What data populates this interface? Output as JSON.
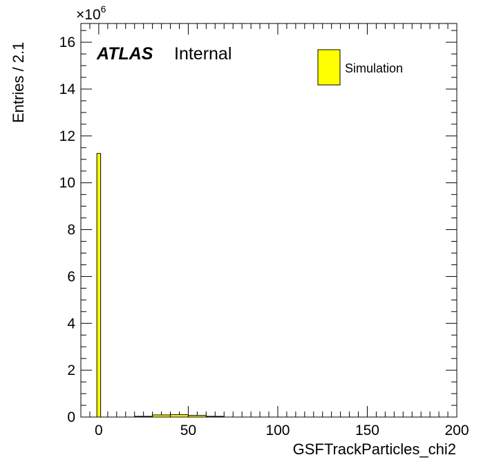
{
  "chart_data": {
    "type": "bar",
    "xlabel": "GSFTrackParticles_chi2",
    "ylabel": "Entries / 2.1",
    "y_scale_label": "×10",
    "y_scale_exponent": "6",
    "y_multiplier": 1000000,
    "xlim": [
      -10,
      200
    ],
    "ylim": [
      0,
      16.8
    ],
    "xticks": [
      0,
      50,
      100,
      150,
      200
    ],
    "yticks": [
      0,
      2,
      4,
      6,
      8,
      10,
      12,
      14,
      16
    ],
    "bin_width": 2.1,
    "bins": [
      {
        "x0": -1.05,
        "x1": 1.05,
        "value": 11.25
      },
      {
        "x0": 20.0,
        "x1": 30.0,
        "value": 0.03
      },
      {
        "x0": 30.0,
        "x1": 40.0,
        "value": 0.09
      },
      {
        "x0": 40.0,
        "x1": 50.0,
        "value": 0.1
      },
      {
        "x0": 50.0,
        "x1": 60.0,
        "value": 0.07
      },
      {
        "x0": 60.0,
        "x1": 70.0,
        "value": 0.03
      }
    ],
    "fill_color": "#ffff00",
    "grid": false,
    "legend": {
      "position": "top-right",
      "entries": [
        "Simulation"
      ]
    }
  },
  "label": {
    "bold": "ATLAS",
    "normal": "Internal"
  }
}
